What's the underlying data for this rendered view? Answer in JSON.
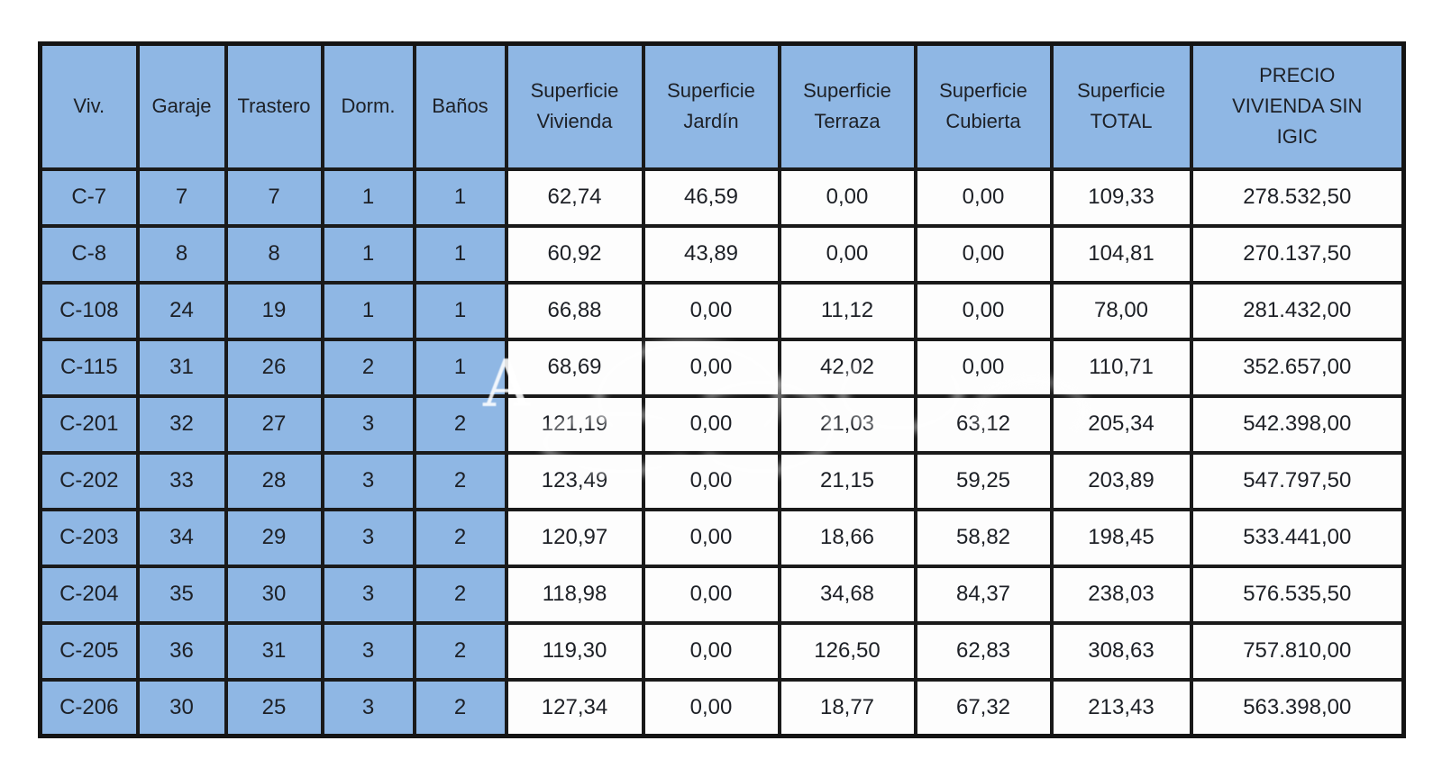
{
  "table": {
    "headers": [
      "Viv.",
      "Garaje",
      "Trastero",
      "Dorm.",
      "Baños",
      "Superficie\nVivienda",
      "Superficie\nJardín",
      "Superficie\nTerraza",
      "Superficie\nCubierta",
      "Superficie\nTOTAL",
      "PRECIO\nVIVIENDA SIN\nIGIC"
    ],
    "rows": [
      [
        "C-7",
        "7",
        "7",
        "1",
        "1",
        "62,74",
        "46,59",
        "0,00",
        "0,00",
        "109,33",
        "278.532,50"
      ],
      [
        "C-8",
        "8",
        "8",
        "1",
        "1",
        "60,92",
        "43,89",
        "0,00",
        "0,00",
        "104,81",
        "270.137,50"
      ],
      [
        "C-108",
        "24",
        "19",
        "1",
        "1",
        "66,88",
        "0,00",
        "11,12",
        "0,00",
        "78,00",
        "281.432,00"
      ],
      [
        "C-115",
        "31",
        "26",
        "2",
        "1",
        "68,69",
        "0,00",
        "42,02",
        "0,00",
        "110,71",
        "352.657,00"
      ],
      [
        "C-201",
        "32",
        "27",
        "3",
        "2",
        "121,19",
        "0,00",
        "21,03",
        "63,12",
        "205,34",
        "542.398,00"
      ],
      [
        "C-202",
        "33",
        "28",
        "3",
        "2",
        "123,49",
        "0,00",
        "21,15",
        "59,25",
        "203,89",
        "547.797,50"
      ],
      [
        "C-203",
        "34",
        "29",
        "3",
        "2",
        "120,97",
        "0,00",
        "18,66",
        "58,82",
        "198,45",
        "533.441,00"
      ],
      [
        "C-204",
        "35",
        "30",
        "3",
        "2",
        "118,98",
        "0,00",
        "34,68",
        "84,37",
        "238,03",
        "576.535,50"
      ],
      [
        "C-205",
        "36",
        "31",
        "3",
        "2",
        "119,30",
        "0,00",
        "126,50",
        "62,83",
        "308,63",
        "757.810,00"
      ],
      [
        "C-206",
        "30",
        "25",
        "3",
        "2",
        "127,34",
        "0,00",
        "18,77",
        "67,32",
        "213,43",
        "563.398,00"
      ]
    ]
  },
  "colors": {
    "cell_blue": "#8fb7e4",
    "border_black": "#1a1a1a",
    "text_dark": "#1d2026",
    "cell_white": "#fdfdfd"
  },
  "watermark": {
    "legible_text": "A"
  }
}
